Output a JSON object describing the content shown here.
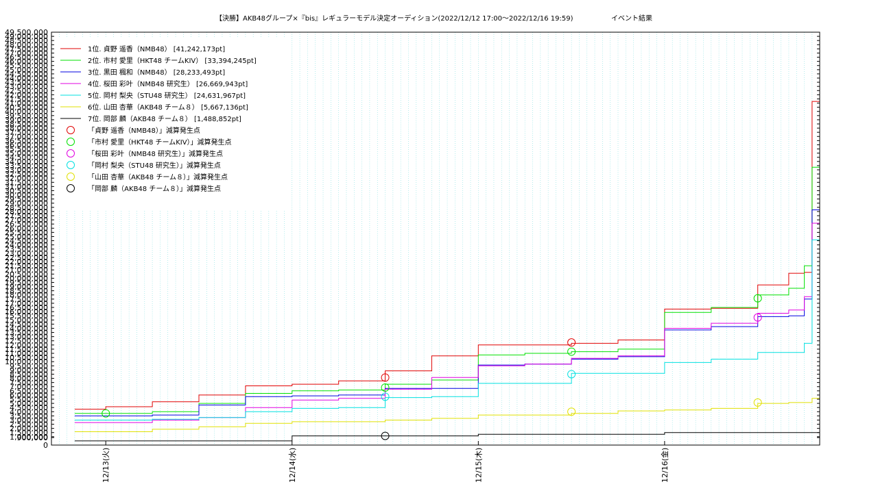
{
  "chart_data": {
    "type": "line",
    "title": "【決勝】AKB48グループ×『bis』レギュラーモデル決定オーディション(2022/12/12 17:00〜2022/12/16 19:59)",
    "subtitle": "イベント結果",
    "xlabel": "",
    "ylabel": "",
    "xlim": [
      "2022-12-12 17:00",
      "2022-12-16 19:59"
    ],
    "ylim": [
      0,
      49500000
    ],
    "grid": true,
    "legend_position": "top-left",
    "x_tick_labels": [
      "12/13(火)",
      "12/14(水)",
      "12/15(木)",
      "12/16(金)"
    ],
    "x_tick_values": [
      "2022-12-13 00:00",
      "2022-12-14 00:00",
      "2022-12-15 00:00",
      "2022-12-16 00:00"
    ],
    "y_tick_labels": [
      "0",
      "900,000",
      "1,000,000",
      "1,500,000",
      "2,000,000",
      "2,500,000",
      "3,000,000",
      "3,500,000",
      "4,000,000",
      "4,500,000",
      "5,000,000",
      "5,500,000",
      "6,000,000",
      "6,500,000",
      "7,000,000",
      "7,500,000",
      "8,000,000",
      "8,500,000",
      "9,000,000",
      "9,500,000",
      "10,000,000",
      "10,500,000",
      "11,000,000",
      "11,500,000",
      "12,000,000",
      "12,500,000",
      "13,000,000",
      "13,500,000",
      "14,000,000",
      "14,500,000",
      "15,000,000",
      "15,500,000",
      "16,000,000",
      "16,500,000",
      "17,000,000",
      "17,500,000",
      "18,000,000",
      "18,500,000",
      "19,000,000",
      "19,500,000",
      "20,000,000",
      "20,500,000",
      "21,000,000",
      "21,500,000",
      "22,000,000",
      "22,500,000",
      "23,000,000",
      "23,500,000",
      "24,000,000",
      "24,500,000",
      "25,000,000",
      "25,500,000",
      "26,000,000",
      "26,500,000",
      "27,000,000",
      "27,500,000",
      "28,000,000",
      "28,500,000",
      "29,000,000",
      "29,500,000",
      "30,000,000",
      "30,500,000",
      "31,000,000",
      "31,500,000",
      "32,000,000",
      "32,500,000",
      "33,000,000",
      "33,500,000",
      "34,000,000",
      "34,500,000",
      "35,000,000",
      "35,500,000",
      "36,000,000",
      "36,500,000",
      "37,000,000",
      "37,500,000",
      "38,000,000",
      "38,500,000",
      "39,000,000",
      "39,500,000",
      "40,000,000",
      "40,500,000",
      "41,000,000",
      "41,500,000",
      "42,000,000",
      "42,500,000",
      "43,000,000",
      "43,500,000",
      "44,000,000",
      "44,500,000",
      "45,000,000",
      "45,500,000",
      "46,000,000",
      "46,500,000",
      "47,000,000",
      "47,500,000",
      "48,000,000",
      "48,500,000",
      "49,000,000",
      "49,500,000"
    ],
    "y_tick_values": [
      0,
      900000,
      1000000,
      1500000,
      2000000,
      2500000,
      3000000,
      3500000,
      4000000,
      4500000,
      5000000,
      5500000,
      6000000,
      6500000,
      7000000,
      7500000,
      8000000,
      8500000,
      9000000,
      9500000,
      10000000,
      10500000,
      11000000,
      11500000,
      12000000,
      12500000,
      13000000,
      13500000,
      14000000,
      14500000,
      15000000,
      15500000,
      16000000,
      16500000,
      17000000,
      17500000,
      18000000,
      18500000,
      19000000,
      19500000,
      20000000,
      20500000,
      21000000,
      21500000,
      22000000,
      22500000,
      23000000,
      23500000,
      24000000,
      24500000,
      25000000,
      25500000,
      26000000,
      26500000,
      27000000,
      27500000,
      28000000,
      28500000,
      29000000,
      29500000,
      30000000,
      30500000,
      31000000,
      31500000,
      32000000,
      32500000,
      33000000,
      33500000,
      34000000,
      34500000,
      35000000,
      35500000,
      36000000,
      36500000,
      37000000,
      37500000,
      38000000,
      38500000,
      39000000,
      39500000,
      40000000,
      40500000,
      41000000,
      41500000,
      42000000,
      42500000,
      43000000,
      43500000,
      44000000,
      44500000,
      45000000,
      45500000,
      46000000,
      46500000,
      47000000,
      47500000,
      48000000,
      48500000,
      49000000,
      49500000
    ],
    "series": [
      {
        "name": "1位. 貞野 遥香（NMB48） [41,242,173pt]",
        "color": "#e00000",
        "x": [
          "2022-12-12 20:00",
          "2022-12-13 00:00",
          "2022-12-13 06:00",
          "2022-12-13 12:00",
          "2022-12-13 18:00",
          "2022-12-14 00:00",
          "2022-12-14 06:00",
          "2022-12-14 12:00",
          "2022-12-14 18:00",
          "2022-12-15 00:00",
          "2022-12-15 06:00",
          "2022-12-15 12:00",
          "2022-12-15 18:00",
          "2022-12-16 00:00",
          "2022-12-16 06:00",
          "2022-12-16 12:00",
          "2022-12-16 16:00",
          "2022-12-16 18:00",
          "2022-12-16 19:00",
          "2022-12-16 19:59"
        ],
        "y": [
          4300000,
          4600000,
          5200000,
          6000000,
          7100000,
          7300000,
          7700000,
          8900000,
          10700000,
          12000000,
          12000000,
          12200000,
          12600000,
          16300000,
          16400000,
          19200000,
          20600000,
          20700000,
          41200000,
          41242173
        ]
      },
      {
        "name": "2位. 市村 愛里（HKT48 チームKIV） [33,394,245pt]",
        "color": "#00e000",
        "x": [
          "2022-12-12 20:00",
          "2022-12-13 00:00",
          "2022-12-13 06:00",
          "2022-12-13 12:00",
          "2022-12-13 18:00",
          "2022-12-14 00:00",
          "2022-12-14 06:00",
          "2022-12-14 12:00",
          "2022-12-14 18:00",
          "2022-12-15 00:00",
          "2022-12-15 06:00",
          "2022-12-15 12:00",
          "2022-12-15 18:00",
          "2022-12-16 00:00",
          "2022-12-16 06:00",
          "2022-12-16 12:00",
          "2022-12-16 16:00",
          "2022-12-16 18:00",
          "2022-12-16 19:00",
          "2022-12-16 19:59"
        ],
        "y": [
          3800000,
          3800000,
          4000000,
          5000000,
          6200000,
          6500000,
          6600000,
          7300000,
          7800000,
          10800000,
          11000000,
          11200000,
          11500000,
          15900000,
          16500000,
          18000000,
          18800000,
          21500000,
          33300000,
          33394245
        ]
      },
      {
        "name": "3位. 黒田 楓和（NMB48） [28,233,493pt]",
        "color": "#0000e0",
        "x": [
          "2022-12-12 20:00",
          "2022-12-13 00:00",
          "2022-12-13 06:00",
          "2022-12-13 12:00",
          "2022-12-13 18:00",
          "2022-12-14 00:00",
          "2022-12-14 06:00",
          "2022-12-14 12:00",
          "2022-12-14 18:00",
          "2022-12-15 00:00",
          "2022-12-15 06:00",
          "2022-12-15 12:00",
          "2022-12-15 18:00",
          "2022-12-16 00:00",
          "2022-12-16 06:00",
          "2022-12-16 12:00",
          "2022-12-16 16:00",
          "2022-12-16 18:00",
          "2022-12-16 19:00",
          "2022-12-16 19:59"
        ],
        "y": [
          3500000,
          3500000,
          3600000,
          4800000,
          5800000,
          5900000,
          6000000,
          6800000,
          6800000,
          9600000,
          9700000,
          10300000,
          10600000,
          13800000,
          14200000,
          15400000,
          15500000,
          17500000,
          28200000,
          28233493
        ]
      },
      {
        "name": "4位. 桜田 彩叶（NMB48 研究生） [26,669,943pt]",
        "color": "#e000e0",
        "x": [
          "2022-12-12 20:00",
          "2022-12-13 00:00",
          "2022-12-13 06:00",
          "2022-12-13 12:00",
          "2022-12-13 18:00",
          "2022-12-14 00:00",
          "2022-12-14 06:00",
          "2022-12-14 12:00",
          "2022-12-14 18:00",
          "2022-12-15 00:00",
          "2022-12-15 06:00",
          "2022-12-15 12:00",
          "2022-12-15 18:00",
          "2022-12-16 00:00",
          "2022-12-16 06:00",
          "2022-12-16 12:00",
          "2022-12-16 16:00",
          "2022-12-16 18:00",
          "2022-12-16 19:00",
          "2022-12-16 19:59"
        ],
        "y": [
          2700000,
          2700000,
          3000000,
          3300000,
          4500000,
          5400000,
          5600000,
          6700000,
          8100000,
          9500000,
          9700000,
          10400000,
          10700000,
          14000000,
          14600000,
          15800000,
          16200000,
          17800000,
          26600000,
          26669943
        ]
      },
      {
        "name": "5位. 岡村 梨央（STU48 研究生） [24,631,967pt]",
        "color": "#00e0e0",
        "x": [
          "2022-12-12 20:00",
          "2022-12-13 00:00",
          "2022-12-13 06:00",
          "2022-12-13 12:00",
          "2022-12-13 18:00",
          "2022-12-14 00:00",
          "2022-12-14 06:00",
          "2022-12-14 12:00",
          "2022-12-14 18:00",
          "2022-12-15 00:00",
          "2022-12-15 06:00",
          "2022-12-15 12:00",
          "2022-12-15 18:00",
          "2022-12-16 00:00",
          "2022-12-16 06:00",
          "2022-12-16 12:00",
          "2022-12-16 16:00",
          "2022-12-16 18:00",
          "2022-12-16 19:00",
          "2022-12-16 19:59"
        ],
        "y": [
          3000000,
          3000000,
          3100000,
          3300000,
          4000000,
          4400000,
          4500000,
          5700000,
          5800000,
          7400000,
          7400000,
          8600000,
          8600000,
          9900000,
          10300000,
          11100000,
          11100000,
          12200000,
          24600000,
          24631967
        ]
      },
      {
        "name": "6位. 山田 杏華（AKB48 チーム８） [5,667,136pt]",
        "color": "#e0e000",
        "x": [
          "2022-12-12 20:00",
          "2022-12-13 00:00",
          "2022-12-13 06:00",
          "2022-12-13 12:00",
          "2022-12-13 18:00",
          "2022-12-14 00:00",
          "2022-12-14 06:00",
          "2022-12-14 12:00",
          "2022-12-14 18:00",
          "2022-12-15 00:00",
          "2022-12-15 06:00",
          "2022-12-15 12:00",
          "2022-12-15 18:00",
          "2022-12-16 00:00",
          "2022-12-16 06:00",
          "2022-12-16 12:00",
          "2022-12-16 16:00",
          "2022-12-16 18:00",
          "2022-12-16 19:00",
          "2022-12-16 19:59"
        ],
        "y": [
          1600000,
          1600000,
          1900000,
          2200000,
          2600000,
          2800000,
          2800000,
          3000000,
          3200000,
          3600000,
          3600000,
          3800000,
          4100000,
          4200000,
          4400000,
          5000000,
          5100000,
          5100000,
          5600000,
          5667136
        ]
      },
      {
        "name": "7位. 岡部 麟（AKB48 チーム８） [1,488,852pt]",
        "color": "#000000",
        "x": [
          "2022-12-12 20:00",
          "2022-12-13 00:00",
          "2022-12-13 06:00",
          "2022-12-13 12:00",
          "2022-12-13 18:00",
          "2022-12-14 00:00",
          "2022-12-14 06:00",
          "2022-12-14 12:00",
          "2022-12-14 18:00",
          "2022-12-15 00:00",
          "2022-12-15 06:00",
          "2022-12-15 12:00",
          "2022-12-15 18:00",
          "2022-12-16 00:00",
          "2022-12-16 06:00",
          "2022-12-16 12:00",
          "2022-12-16 16:00",
          "2022-12-16 18:00",
          "2022-12-16 19:00",
          "2022-12-16 19:59"
        ],
        "y": [
          500000,
          500000,
          500000,
          500000,
          500000,
          1100000,
          1100000,
          1100000,
          1100000,
          1300000,
          1300000,
          1300000,
          1300000,
          1500000,
          1500000,
          1500000,
          1500000,
          1500000,
          1500000,
          1488852
        ]
      }
    ],
    "markers": [
      {
        "name": "「貞野 遥香（NMB48）」減算発生点",
        "color": "#e00000",
        "x": [
          "2022-12-14 12:00",
          "2022-12-15 12:00"
        ],
        "y": [
          8100000,
          12300000
        ]
      },
      {
        "name": "「市村 愛里（HKT48 チームKIV）」減算発生点",
        "color": "#00e000",
        "x": [
          "2022-12-13 00:00",
          "2022-12-14 12:00",
          "2022-12-15 12:00",
          "2022-12-16 12:00"
        ],
        "y": [
          3800000,
          6900000,
          11200000,
          17600000
        ]
      },
      {
        "name": "「桜田 彩叶（NMB48 研究生）」減算発生点",
        "color": "#e000e0",
        "x": [
          "2022-12-16 12:00"
        ],
        "y": [
          15300000
        ]
      },
      {
        "name": "「岡村 梨央（STU48 研究生）」減算発生点",
        "color": "#00e0e0",
        "x": [
          "2022-12-14 12:00",
          "2022-12-15 12:00"
        ],
        "y": [
          5800000,
          8500000
        ]
      },
      {
        "name": "「山田 杏華（AKB48 チーム８）」減算発生点",
        "color": "#e0e000",
        "x": [
          "2022-12-15 12:00",
          "2022-12-16 12:00"
        ],
        "y": [
          4000000,
          5100000
        ]
      },
      {
        "name": "「岡部 麟（AKB48 チーム８）」減算発生点",
        "color": "#000000",
        "x": [
          "2022-12-14 12:00"
        ],
        "y": [
          1100000
        ]
      }
    ]
  }
}
